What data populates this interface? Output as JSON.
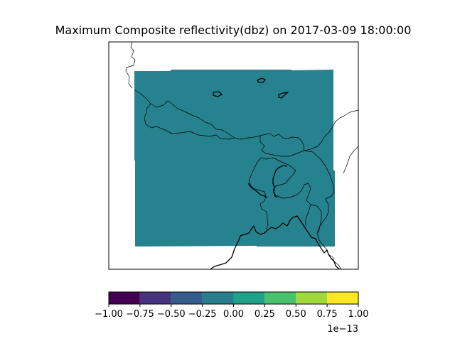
{
  "chart_data": {
    "type": "heatmap",
    "title": "Maximum Composite reflectivity(dbz) on 2017-03-09 18:00:00",
    "field_value": 0.0,
    "field_color": "#26828e",
    "map_features": [
      "country borders",
      "coastline",
      "lakes"
    ],
    "colorbar": {
      "orientation": "horizontal",
      "levels": [
        -1.0,
        -0.75,
        -0.5,
        -0.25,
        0.0,
        0.25,
        0.5,
        0.75,
        1.0
      ],
      "tick_labels": [
        "−1.00",
        "−0.75",
        "−0.50",
        "−0.25",
        "0.00",
        "0.25",
        "0.50",
        "0.75",
        "1.00"
      ],
      "colors": [
        "#440154",
        "#46337e",
        "#365c8d",
        "#277f8e",
        "#1fa187",
        "#4ac16d",
        "#9fda3a",
        "#fde725"
      ],
      "scale_label": "1e−13"
    }
  }
}
